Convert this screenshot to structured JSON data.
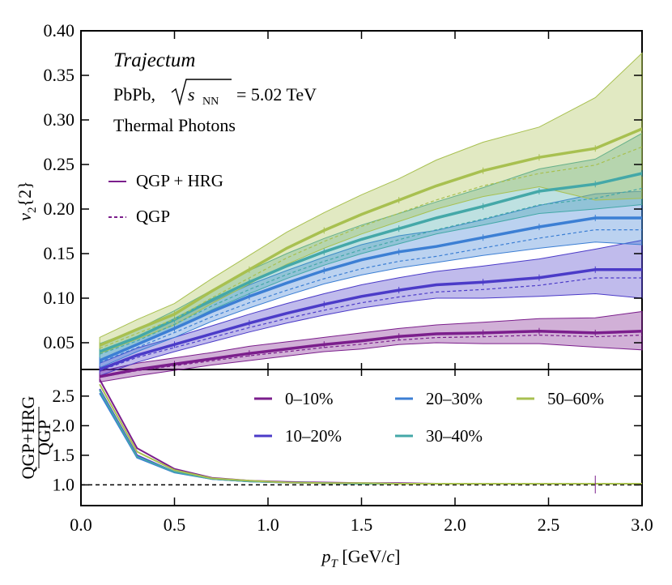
{
  "chart_data": [
    {
      "type": "line",
      "panel": "top",
      "ylabel_main": "v",
      "ylabel_sub": "2",
      "ylabel_tail": "{2}",
      "ylim": [
        0.02,
        0.4
      ],
      "xlim": [
        0.0,
        3.0
      ],
      "yticks": [
        0.05,
        0.1,
        0.15,
        0.2,
        0.25,
        0.3,
        0.35,
        0.4
      ],
      "ytick_labels": [
        "0.05",
        "0.10",
        "0.15",
        "0.20",
        "0.25",
        "0.30",
        "0.35",
        "0.40"
      ],
      "annotations": {
        "model": "Trajectum",
        "system_prefix": "PbPb,",
        "energy_suffix": "= 5.02 TeV",
        "sub_label": "NN",
        "s_label": "s",
        "photons": "Thermal Photons"
      },
      "style_legend": [
        {
          "label": "QGP + HRG",
          "style": "solid"
        },
        {
          "label": "QGP",
          "style": "dashed"
        }
      ],
      "x": [
        0.1,
        0.3,
        0.5,
        0.7,
        0.9,
        1.1,
        1.3,
        1.5,
        1.7,
        1.9,
        2.15,
        2.45,
        2.75,
        3.0
      ],
      "series": [
        {
          "name": "0–10%",
          "color": "#7B1E8C",
          "values": [
            0.012,
            0.02,
            0.026,
            0.032,
            0.038,
            0.043,
            0.048,
            0.052,
            0.057,
            0.06,
            0.061,
            0.063,
            0.061,
            0.063
          ],
          "lower": [
            0.006,
            0.013,
            0.019,
            0.025,
            0.03,
            0.035,
            0.04,
            0.043,
            0.048,
            0.05,
            0.049,
            0.049,
            0.045,
            0.042
          ],
          "upper": [
            0.018,
            0.027,
            0.033,
            0.039,
            0.046,
            0.051,
            0.056,
            0.061,
            0.066,
            0.07,
            0.073,
            0.077,
            0.078,
            0.085
          ]
        },
        {
          "name": "10–20%",
          "color": "#4B3BC8",
          "values": [
            0.02,
            0.036,
            0.048,
            0.06,
            0.072,
            0.083,
            0.093,
            0.102,
            0.109,
            0.115,
            0.118,
            0.123,
            0.132,
            0.132
          ],
          "lower": [
            0.013,
            0.028,
            0.04,
            0.051,
            0.062,
            0.072,
            0.081,
            0.089,
            0.095,
            0.1,
            0.1,
            0.102,
            0.105,
            0.1
          ],
          "upper": [
            0.027,
            0.044,
            0.056,
            0.069,
            0.082,
            0.094,
            0.105,
            0.115,
            0.123,
            0.13,
            0.136,
            0.144,
            0.155,
            0.165
          ]
        },
        {
          "name": "20–30%",
          "color": "#3C7FD4",
          "values": [
            0.03,
            0.048,
            0.066,
            0.085,
            0.102,
            0.117,
            0.131,
            0.143,
            0.152,
            0.158,
            0.168,
            0.18,
            0.19,
            0.19
          ],
          "lower": [
            0.022,
            0.04,
            0.056,
            0.074,
            0.089,
            0.103,
            0.116,
            0.126,
            0.134,
            0.14,
            0.148,
            0.156,
            0.163,
            0.16
          ],
          "upper": [
            0.038,
            0.056,
            0.076,
            0.096,
            0.115,
            0.131,
            0.146,
            0.16,
            0.17,
            0.176,
            0.188,
            0.204,
            0.217,
            0.22
          ]
        },
        {
          "name": "30–40%",
          "color": "#44A8A8",
          "values": [
            0.04,
            0.056,
            0.076,
            0.098,
            0.118,
            0.136,
            0.152,
            0.166,
            0.178,
            0.19,
            0.203,
            0.22,
            0.228,
            0.24
          ],
          "lower": [
            0.031,
            0.047,
            0.066,
            0.087,
            0.105,
            0.122,
            0.137,
            0.15,
            0.161,
            0.172,
            0.182,
            0.195,
            0.2,
            0.205
          ],
          "upper": [
            0.049,
            0.065,
            0.086,
            0.109,
            0.131,
            0.15,
            0.167,
            0.182,
            0.195,
            0.208,
            0.224,
            0.245,
            0.256,
            0.285
          ]
        },
        {
          "name": "50–60%",
          "color": "#A8C050",
          "values": [
            0.047,
            0.065,
            0.082,
            0.108,
            0.132,
            0.156,
            0.176,
            0.194,
            0.21,
            0.226,
            0.243,
            0.258,
            0.268,
            0.29
          ],
          "lower": [
            0.038,
            0.054,
            0.07,
            0.094,
            0.116,
            0.138,
            0.156,
            0.172,
            0.186,
            0.2,
            0.214,
            0.225,
            0.21,
            0.212
          ],
          "upper": [
            0.056,
            0.076,
            0.094,
            0.122,
            0.148,
            0.174,
            0.196,
            0.216,
            0.234,
            0.255,
            0.275,
            0.292,
            0.325,
            0.375
          ]
        }
      ]
    },
    {
      "type": "line",
      "panel": "bottom",
      "xlabel_main": "p",
      "xlabel_sub": "T",
      "xlabel_tail": " [GeV/",
      "xlabel_c": "c",
      "xlabel_close": "]",
      "ylabel_num": "QGP+HRG",
      "ylabel_den": "QGP",
      "ylim": [
        0.65,
        2.95
      ],
      "xlim": [
        0.0,
        3.0
      ],
      "yticks": [
        1.0,
        1.5,
        2.0,
        2.5
      ],
      "ytick_labels": [
        "1.0",
        "1.5",
        "2.0",
        "2.5"
      ],
      "xticks": [
        0.0,
        0.5,
        1.0,
        1.5,
        2.0,
        2.5,
        3.0
      ],
      "xtick_labels": [
        "0.0",
        "0.5",
        "1.0",
        "1.5",
        "2.0",
        "2.5",
        "3.0"
      ],
      "reference_line": 1.0,
      "x": [
        0.1,
        0.3,
        0.5,
        0.7,
        0.9,
        1.1,
        1.3,
        1.5,
        1.7,
        1.9,
        2.15,
        2.45,
        2.75,
        3.0
      ],
      "series": [
        {
          "name": "0–10%",
          "color": "#7B1E8C",
          "values": [
            2.78,
            1.62,
            1.27,
            1.12,
            1.07,
            1.05,
            1.04,
            1.03,
            1.03,
            1.02,
            1.02,
            1.02,
            1.02,
            1.02
          ]
        },
        {
          "name": "10–20%",
          "color": "#4B3BC8",
          "values": [
            2.62,
            1.5,
            1.22,
            1.1,
            1.06,
            1.04,
            1.03,
            1.02,
            1.02,
            1.02,
            1.02,
            1.02,
            1.02,
            1.02
          ]
        },
        {
          "name": "20–30%",
          "color": "#3C7FD4",
          "values": [
            2.55,
            1.46,
            1.21,
            1.1,
            1.06,
            1.04,
            1.03,
            1.02,
            1.02,
            1.02,
            1.02,
            1.02,
            1.02,
            1.02
          ]
        },
        {
          "name": "30–40%",
          "color": "#44A8A8",
          "values": [
            2.6,
            1.48,
            1.22,
            1.1,
            1.06,
            1.04,
            1.03,
            1.02,
            1.02,
            1.02,
            1.02,
            1.02,
            1.02,
            1.02
          ]
        },
        {
          "name": "50–60%",
          "color": "#A8C050",
          "values": [
            2.7,
            1.56,
            1.25,
            1.11,
            1.07,
            1.04,
            1.03,
            1.03,
            1.02,
            1.02,
            1.02,
            1.02,
            1.02,
            1.02
          ]
        }
      ],
      "legend": [
        "0–10%",
        "20–30%",
        "50–60%",
        "10–20%",
        "30–40%"
      ]
    }
  ]
}
